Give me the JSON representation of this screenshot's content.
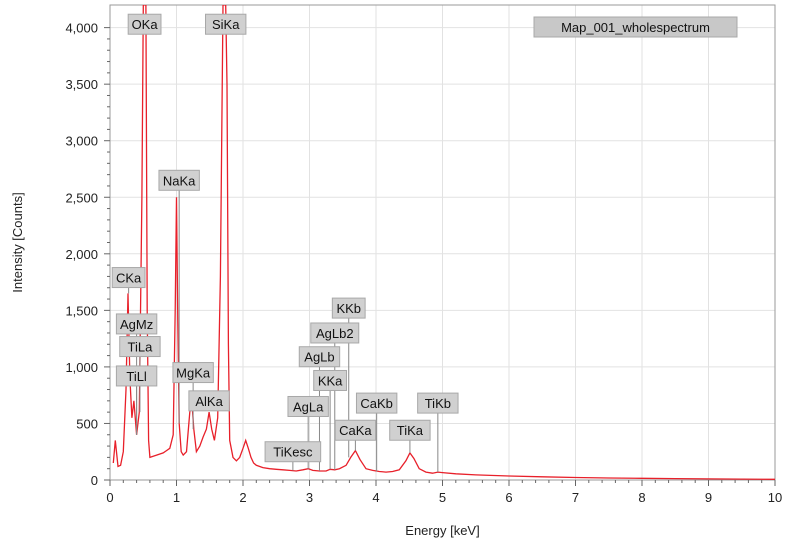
{
  "chart_data": {
    "type": "line",
    "xlabel": "Energy [keV]",
    "ylabel": "Intensity [Counts]",
    "xlim": [
      0,
      10
    ],
    "ylim": [
      0,
      4200
    ],
    "x_ticks": [
      "0",
      "1",
      "2",
      "3",
      "4",
      "5",
      "6",
      "7",
      "8",
      "9",
      "10"
    ],
    "y_ticks": [
      "0",
      "500",
      "1,000",
      "1,500",
      "2,000",
      "2,500",
      "3,000",
      "3,500",
      "4,000"
    ],
    "grid": true,
    "line_color": "#e8202a",
    "legend_position": "top-right",
    "series": [
      {
        "name": "Map_001_wholespectrum",
        "x": [
          0.05,
          0.08,
          0.12,
          0.16,
          0.2,
          0.24,
          0.27,
          0.3,
          0.33,
          0.36,
          0.4,
          0.44,
          0.48,
          0.5,
          0.52,
          0.54,
          0.56,
          0.58,
          0.6,
          0.65,
          0.7,
          0.75,
          0.8,
          0.85,
          0.9,
          0.95,
          0.98,
          1.0,
          1.02,
          1.04,
          1.07,
          1.1,
          1.15,
          1.2,
          1.23,
          1.26,
          1.3,
          1.35,
          1.4,
          1.45,
          1.49,
          1.53,
          1.57,
          1.62,
          1.66,
          1.7,
          1.72,
          1.74,
          1.76,
          1.78,
          1.8,
          1.85,
          1.9,
          1.95,
          2.0,
          2.04,
          2.08,
          2.12,
          2.16,
          2.2,
          2.3,
          2.4,
          2.5,
          2.6,
          2.7,
          2.8,
          2.9,
          2.98,
          3.05,
          3.15,
          3.25,
          3.31,
          3.38,
          3.45,
          3.55,
          3.62,
          3.69,
          3.76,
          3.85,
          3.95,
          4.05,
          4.15,
          4.25,
          4.35,
          4.45,
          4.51,
          4.57,
          4.65,
          4.75,
          4.85,
          4.93,
          5.0,
          5.2,
          5.5,
          6.0,
          6.5,
          7.0,
          7.5,
          8.0,
          8.5,
          9.0,
          9.5,
          10.0
        ],
        "values": [
          150,
          350,
          120,
          130,
          250,
          800,
          1650,
          900,
          550,
          700,
          400,
          600,
          2500,
          4200,
          4200,
          4200,
          1500,
          350,
          200,
          210,
          220,
          230,
          240,
          260,
          280,
          400,
          1500,
          2500,
          1400,
          500,
          250,
          220,
          250,
          600,
          700,
          450,
          250,
          300,
          380,
          450,
          600,
          450,
          350,
          550,
          1800,
          4200,
          4200,
          4200,
          3500,
          1200,
          350,
          200,
          170,
          200,
          280,
          350,
          280,
          200,
          150,
          130,
          110,
          100,
          95,
          90,
          85,
          80,
          90,
          100,
          85,
          80,
          80,
          95,
          90,
          100,
          130,
          200,
          260,
          180,
          100,
          85,
          75,
          70,
          75,
          90,
          170,
          240,
          190,
          100,
          70,
          60,
          70,
          65,
          55,
          45,
          35,
          28,
          22,
          18,
          15,
          12,
          10,
          8,
          6
        ]
      }
    ],
    "peak_labels": [
      {
        "text": "OKa",
        "x": 0.52,
        "box_y": 4030
      },
      {
        "text": "SiKa",
        "x": 1.74,
        "box_y": 4030
      },
      {
        "text": "NaKa",
        "x": 1.04,
        "box_y": 2650
      },
      {
        "text": "CKa",
        "x": 0.28,
        "box_y": 1790
      },
      {
        "text": "AgMz",
        "x": 0.4,
        "box_y": 1380
      },
      {
        "text": "TiLa",
        "x": 0.45,
        "box_y": 1180
      },
      {
        "text": "TiLl",
        "x": 0.4,
        "box_y": 920
      },
      {
        "text": "MgKa",
        "x": 1.25,
        "box_y": 950
      },
      {
        "text": "AlKa",
        "x": 1.49,
        "box_y": 700
      },
      {
        "text": "KKb",
        "x": 3.59,
        "box_y": 1520
      },
      {
        "text": "AgLb2",
        "x": 3.38,
        "box_y": 1300
      },
      {
        "text": "AgLb",
        "x": 3.15,
        "box_y": 1090
      },
      {
        "text": "KKa",
        "x": 3.31,
        "box_y": 880
      },
      {
        "text": "AgLa",
        "x": 2.98,
        "box_y": 650
      },
      {
        "text": "CaKb",
        "x": 4.01,
        "box_y": 680
      },
      {
        "text": "TiKb",
        "x": 4.93,
        "box_y": 680
      },
      {
        "text": "CaKa",
        "x": 3.69,
        "box_y": 440
      },
      {
        "text": "TiKa",
        "x": 4.51,
        "box_y": 440
      },
      {
        "text": "TiKesc",
        "x": 2.75,
        "box_y": 250
      }
    ]
  }
}
